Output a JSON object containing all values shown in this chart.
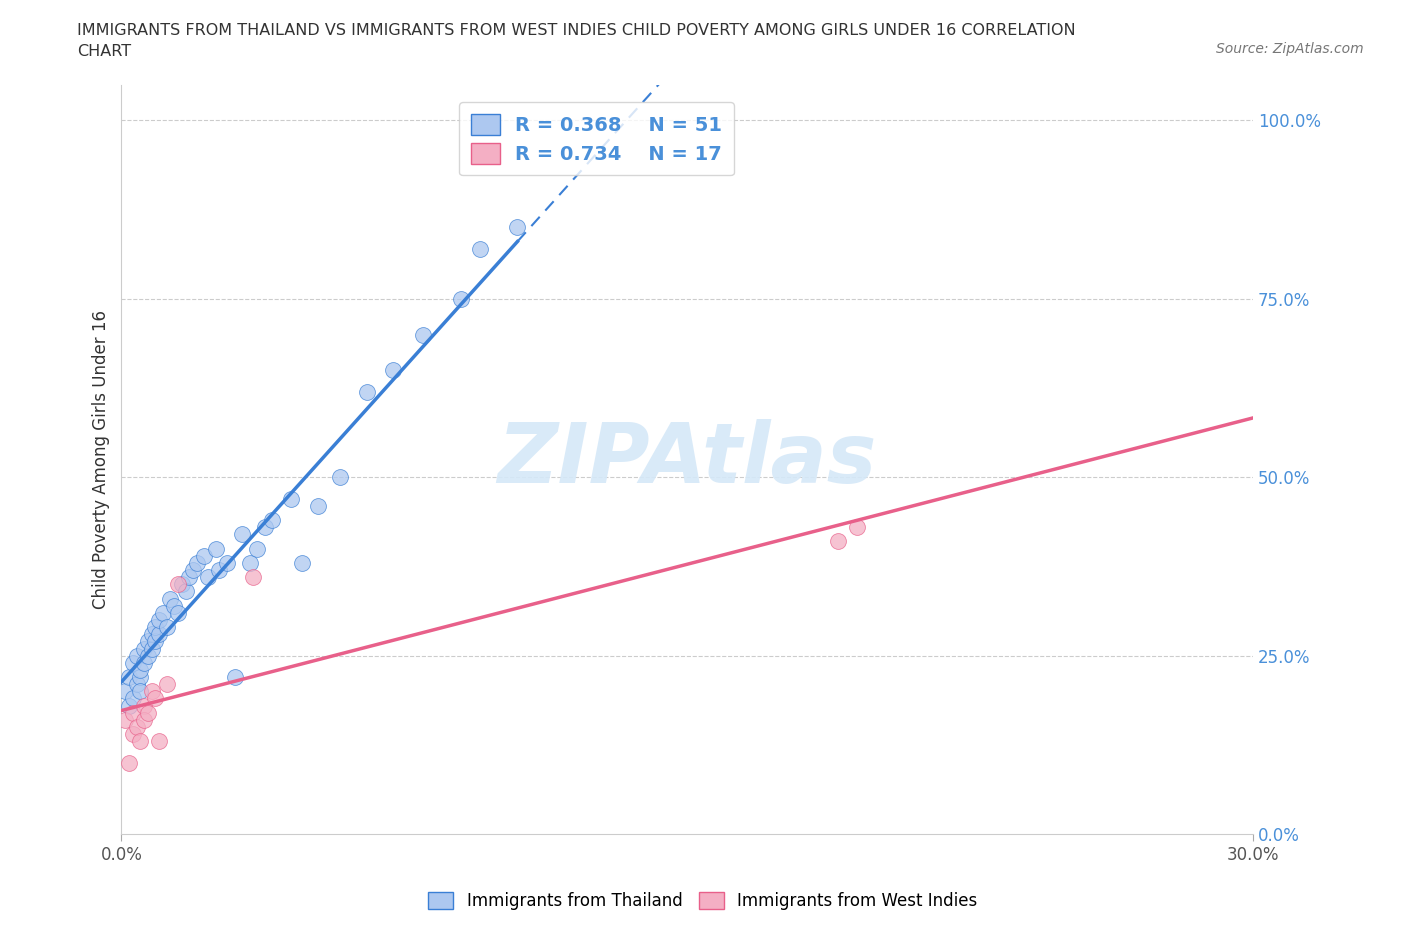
{
  "title_line1": "IMMIGRANTS FROM THAILAND VS IMMIGRANTS FROM WEST INDIES CHILD POVERTY AMONG GIRLS UNDER 16 CORRELATION",
  "title_line2": "CHART",
  "source_text": "Source: ZipAtlas.com",
  "ylabel": "Child Poverty Among Girls Under 16",
  "xlim": [
    0.0,
    0.3
  ],
  "ylim": [
    0.0,
    1.05
  ],
  "x_tick_labels": [
    "0.0%",
    "30.0%"
  ],
  "x_tick_positions": [
    0.0,
    0.3
  ],
  "y_ticks": [
    0.0,
    0.25,
    0.5,
    0.75,
    1.0
  ],
  "y_tick_labels": [
    "0.0%",
    "25.0%",
    "50.0%",
    "75.0%",
    "100.0%"
  ],
  "r_thailand": 0.368,
  "n_thailand": 51,
  "r_west_indies": 0.734,
  "n_west_indies": 17,
  "thailand_color": "#adc8f0",
  "west_indies_color": "#f4afc4",
  "trend_thailand_color": "#3a7fd5",
  "trend_west_indies_color": "#e8608a",
  "legend_r_color": "#4a90d9",
  "watermark_color": "#d5e8f8",
  "legend_label_thailand": "Immigrants from Thailand",
  "legend_label_west_indies": "Immigrants from West Indies",
  "thailand_x": [
    0.001,
    0.002,
    0.002,
    0.003,
    0.003,
    0.004,
    0.004,
    0.005,
    0.005,
    0.005,
    0.006,
    0.006,
    0.007,
    0.007,
    0.008,
    0.008,
    0.009,
    0.009,
    0.01,
    0.01,
    0.011,
    0.012,
    0.013,
    0.014,
    0.015,
    0.016,
    0.017,
    0.018,
    0.019,
    0.02,
    0.022,
    0.023,
    0.025,
    0.026,
    0.028,
    0.03,
    0.032,
    0.034,
    0.036,
    0.038,
    0.04,
    0.045,
    0.048,
    0.052,
    0.058,
    0.065,
    0.072,
    0.08,
    0.09,
    0.095,
    0.105
  ],
  "thailand_y": [
    0.2,
    0.22,
    0.18,
    0.19,
    0.24,
    0.21,
    0.25,
    0.22,
    0.2,
    0.23,
    0.24,
    0.26,
    0.25,
    0.27,
    0.26,
    0.28,
    0.27,
    0.29,
    0.28,
    0.3,
    0.31,
    0.29,
    0.33,
    0.32,
    0.31,
    0.35,
    0.34,
    0.36,
    0.37,
    0.38,
    0.39,
    0.36,
    0.4,
    0.37,
    0.38,
    0.22,
    0.42,
    0.38,
    0.4,
    0.43,
    0.44,
    0.47,
    0.38,
    0.46,
    0.5,
    0.62,
    0.65,
    0.7,
    0.75,
    0.82,
    0.85
  ],
  "west_indies_x": [
    0.001,
    0.002,
    0.003,
    0.003,
    0.004,
    0.005,
    0.006,
    0.006,
    0.007,
    0.008,
    0.009,
    0.01,
    0.012,
    0.015,
    0.035,
    0.19,
    0.195
  ],
  "west_indies_y": [
    0.16,
    0.1,
    0.14,
    0.17,
    0.15,
    0.13,
    0.18,
    0.16,
    0.17,
    0.2,
    0.19,
    0.13,
    0.21,
    0.35,
    0.36,
    0.41,
    0.43
  ]
}
